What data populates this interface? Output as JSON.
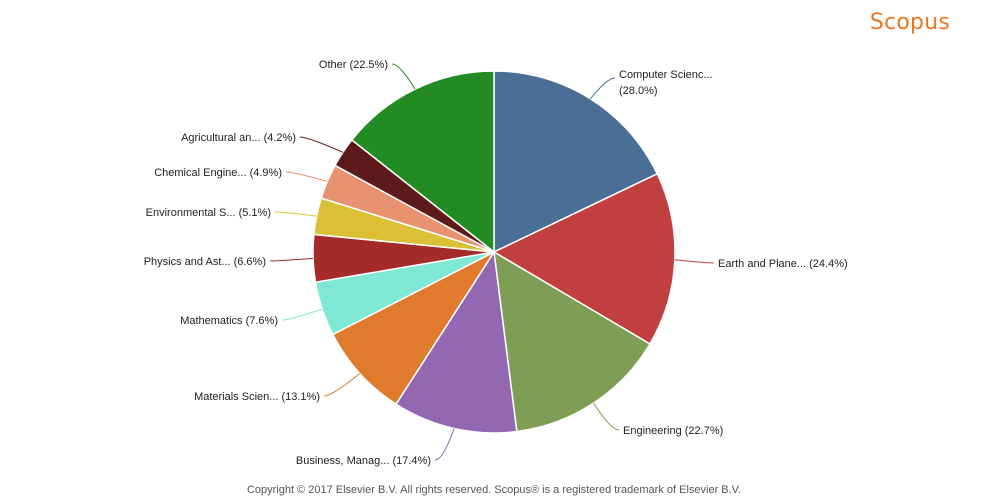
{
  "brand": {
    "name": "Scopus",
    "color": "#e87722"
  },
  "footer": {
    "copyright": "Copyright © 2017 Elsevier B.V. All rights reserved. Scopus® is a registered trademark of Elsevier B.V."
  },
  "chart_data": {
    "type": "pie",
    "title": "",
    "slices": [
      {
        "label": "Computer Scienc...",
        "value": 28.0,
        "display": "(28.0%)",
        "color": "#4a6e94",
        "label_lines": [
          "Computer Scienc...",
          "(28.0%)"
        ]
      },
      {
        "label": "Earth and Plane...",
        "value": 24.4,
        "display": "(24.4%)",
        "color": "#c13f3f",
        "label_lines": [
          "Earth and Plane... (24.4%)"
        ]
      },
      {
        "label": "Engineering",
        "value": 22.7,
        "display": "(22.7%)",
        "color": "#7f9e55",
        "label_lines": [
          "Engineering (22.7%)"
        ]
      },
      {
        "label": "Business, Manag...",
        "value": 17.4,
        "display": "(17.4%)",
        "color": "#9467b3",
        "label_lines": [
          "Business, Manag... (17.4%)"
        ]
      },
      {
        "label": "Materials Scien...",
        "value": 13.1,
        "display": "(13.1%)",
        "color": "#e07b2e",
        "label_lines": [
          "Materials Scien... (13.1%)"
        ]
      },
      {
        "label": "Mathematics",
        "value": 7.6,
        "display": "(7.6%)",
        "color": "#7ee8d4",
        "label_lines": [
          "Mathematics (7.6%)"
        ]
      },
      {
        "label": "Physics and Ast...",
        "value": 6.6,
        "display": "(6.6%)",
        "color": "#a52a2a",
        "label_lines": [
          "Physics and Ast... (6.6%)"
        ]
      },
      {
        "label": "Environmental S...",
        "value": 5.1,
        "display": "(5.1%)",
        "color": "#dbbf34",
        "label_lines": [
          "Environmental S... (5.1%)"
        ]
      },
      {
        "label": "Chemical Engine...",
        "value": 4.9,
        "display": "(4.9%)",
        "color": "#e8926f",
        "label_lines": [
          "Chemical Engine... (4.9%)"
        ]
      },
      {
        "label": "Agricultural an...",
        "value": 4.2,
        "display": "(4.2%)",
        "color": "#5c1a1a",
        "label_lines": [
          "Agricultural an... (4.2%)"
        ]
      },
      {
        "label": "Other",
        "value": 22.5,
        "display": "(22.5%)",
        "color": "#238b23",
        "label_lines": [
          "Other (22.5%)"
        ]
      }
    ],
    "start_angle": "12 o'clock",
    "direction": "clockwise",
    "legend": "none (labels outside slices with leader lines)"
  }
}
